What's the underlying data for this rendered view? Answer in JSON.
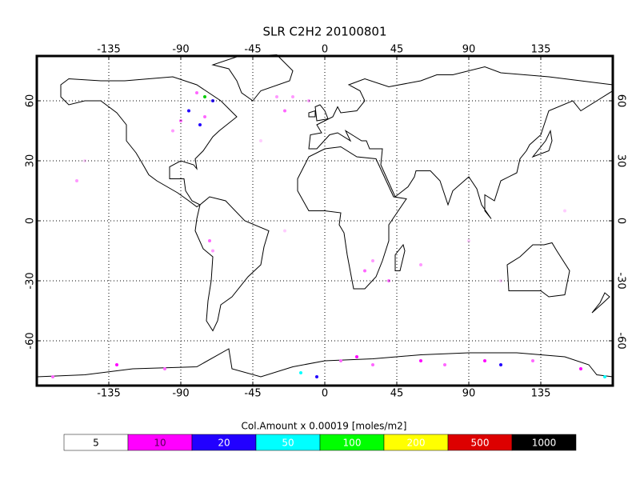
{
  "title": "SLR C2H2 20100801",
  "map": {
    "lon_ticks": [
      -135,
      -90,
      -45,
      0,
      45,
      90,
      135
    ],
    "lat_ticks": [
      60,
      30,
      0,
      -30,
      -60
    ],
    "grid": true
  },
  "colorbar": {
    "caption": "Col.Amount x  0.00019 [moles/m2]",
    "levels": [
      5,
      10,
      20,
      50,
      100,
      200,
      500,
      1000
    ],
    "colors": [
      "#ffffff",
      "#ff00ff",
      "#2200ff",
      "#00ffff",
      "#00ff00",
      "#ffff00",
      "#dd0000",
      "#000000"
    ],
    "text_colors": [
      "#000000",
      "#550055",
      "#ffffff",
      "#ffffff",
      "#ffffff",
      "#ffffff",
      "#ffffff",
      "#ffffff"
    ]
  }
}
